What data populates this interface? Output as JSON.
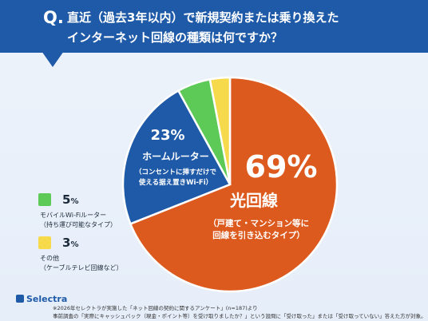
{
  "header": {
    "q_mark": "Q.",
    "line1": "直近（過去3年以内）で新規契約または乗り換えた",
    "line2": "インターネット回線の種類は何ですか？"
  },
  "colors": {
    "header_bg": "#1e5aa8",
    "fiber": "#dd5a1f",
    "home_router": "#1e5aa8",
    "mobile_router": "#5dca57",
    "other": "#f7d94c"
  },
  "chart_data": {
    "type": "pie",
    "slices": [
      {
        "pct_label": "69%",
        "name": "光回線",
        "sub": [
          "（戸建て・マンション等に",
          "回線を引き込むタイプ）"
        ],
        "value": 69
      },
      {
        "pct_label": "23%",
        "name": "ホームルーター",
        "sub": [
          "（コンセントに挿すだけで",
          "使える据え置きWi-Fi）"
        ],
        "value": 23
      },
      {
        "pct_label": "5",
        "unit": "%",
        "name": "モバイルWi-Fiルーター",
        "sub": [
          "（持ち運び可能なタイプ）"
        ],
        "value": 5
      },
      {
        "pct_label": "3",
        "unit": "%",
        "name": "その他",
        "sub": [
          "（ケーブルテレビ回線など）"
        ],
        "value": 3
      }
    ]
  },
  "footer": {
    "logo": "Selectra",
    "note1": "※2026年セレクトラが実施した「ネット回線の契約に関するアンケート」(n=187)より",
    "note2": "事前調査の「実際にキャッシュバック（現金・ポイント等）を受け取りましたか？」という設問に「受け取った」または「受け取っていない」答えた方が対象。"
  }
}
